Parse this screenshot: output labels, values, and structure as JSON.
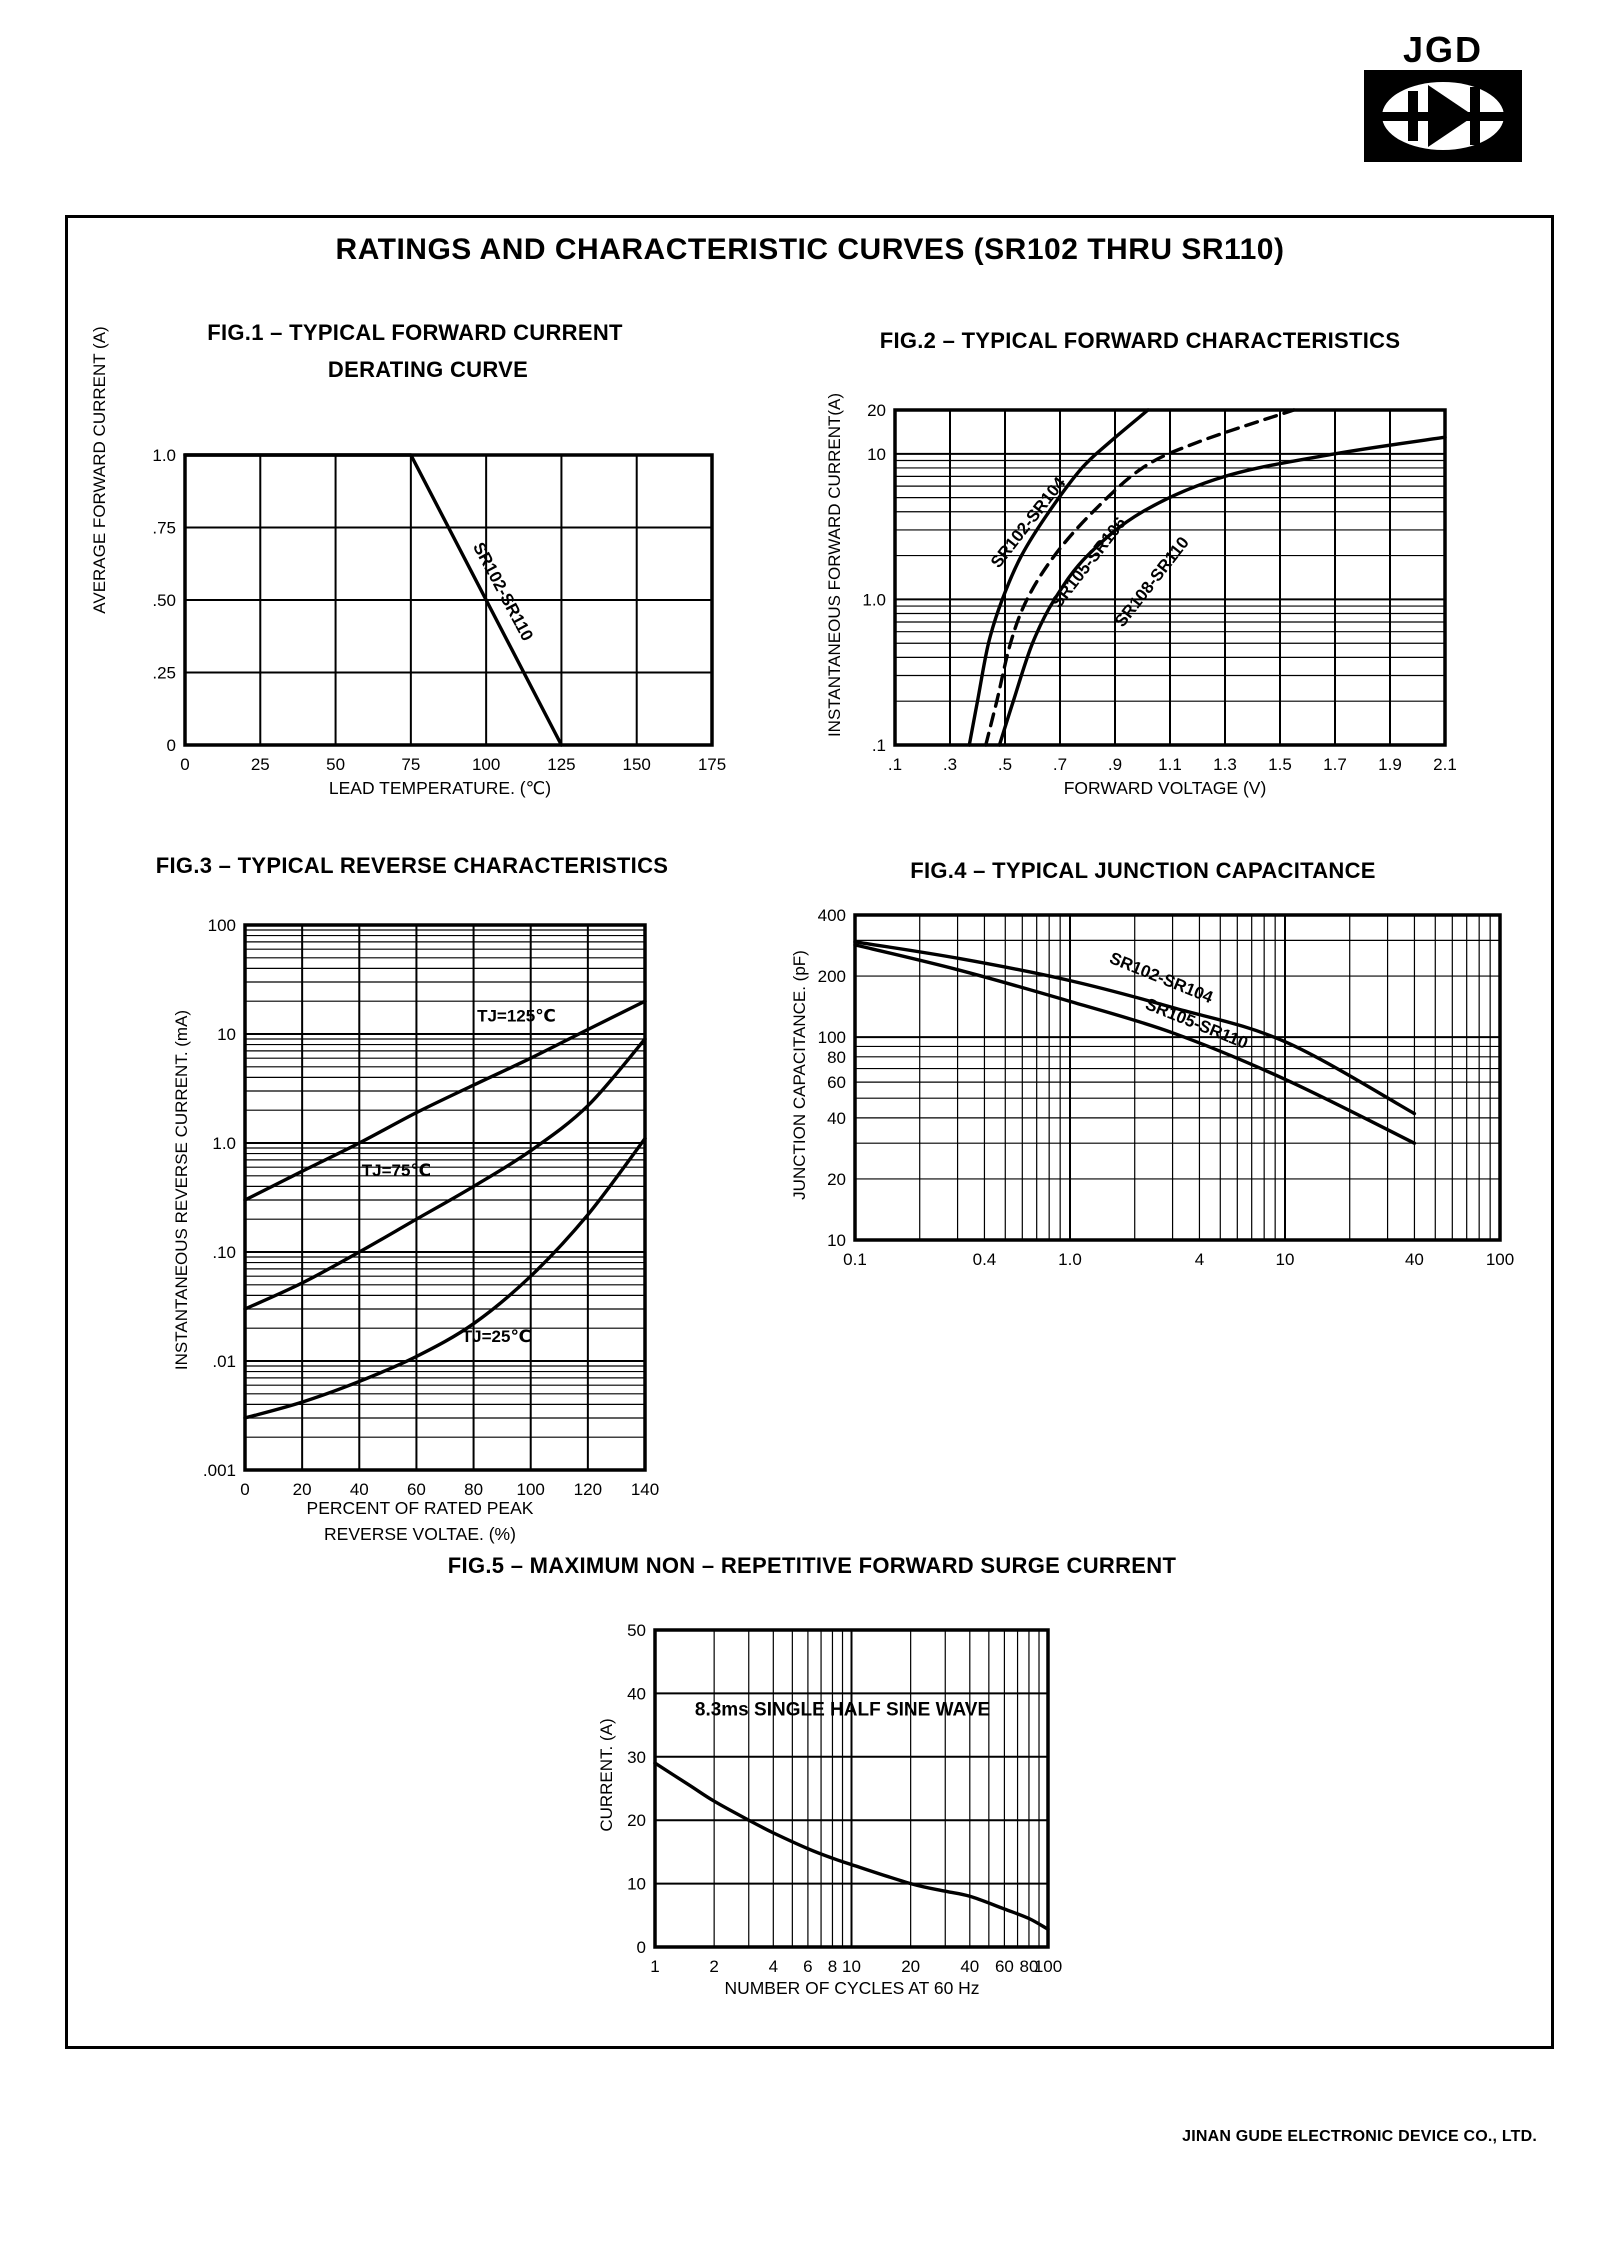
{
  "page": {
    "main_title": "RATINGS AND CHARACTERISTIC CURVES (SR102 THRU SR110)",
    "logo_text": "JGD",
    "footer": "JINAN GUDE ELECTRONIC DEVICE CO., LTD."
  },
  "chart_data": [
    {
      "id": "fig1",
      "type": "line",
      "title": "FIG.1 – TYPICAL FORWARD CURRENT",
      "title_line2": "DERATING CURVE",
      "xlabel": "LEAD TEMPERATURE. (℃)",
      "ylabel": "AVERAGE FORWARD CURRENT (A)",
      "x_scale": "linear",
      "x_range": [
        0,
        175
      ],
      "y_scale": "linear",
      "y_range": [
        0,
        1.0
      ],
      "x_ticks": [
        {
          "v": 0,
          "label": "0"
        },
        {
          "v": 25,
          "label": "25"
        },
        {
          "v": 50,
          "label": "50"
        },
        {
          "v": 75,
          "label": "75"
        },
        {
          "v": 100,
          "label": "100"
        },
        {
          "v": 125,
          "label": "125"
        },
        {
          "v": 150,
          "label": "150"
        },
        {
          "v": 175,
          "label": "175"
        }
      ],
      "y_ticks": [
        {
          "v": 1.0,
          "label": "1.0"
        },
        {
          "v": 0.75,
          "label": ".75"
        },
        {
          "v": 0.5,
          "label": ".50"
        },
        {
          "v": 0.25,
          "label": ".25"
        },
        {
          "v": 0,
          "label": "0"
        }
      ],
      "series": [
        {
          "name": "SR102-SR110",
          "dash": false,
          "smooth": false,
          "points": [
            [
              0,
              1.0
            ],
            [
              75,
              1.0
            ],
            [
              125,
              0
            ]
          ]
        }
      ],
      "annotations": [
        {
          "text": "SR102-SR110",
          "x": 104,
          "y": 0.52,
          "rot": 62,
          "fs": 17
        }
      ]
    },
    {
      "id": "fig2",
      "type": "line",
      "title": "FIG.2 – TYPICAL FORWARD CHARACTERISTICS",
      "xlabel": "FORWARD VOLTAGE (V)",
      "ylabel": "INSTANTANEOUS FORWARD CURRENT(A)",
      "x_scale": "linear",
      "x_range": [
        0.1,
        2.1
      ],
      "y_scale": "log",
      "y_range": [
        0.1,
        20
      ],
      "x_ticks": [
        {
          "v": 0.1,
          "label": ".1"
        },
        {
          "v": 0.3,
          "label": ".3"
        },
        {
          "v": 0.5,
          "label": ".5"
        },
        {
          "v": 0.7,
          "label": ".7"
        },
        {
          "v": 0.9,
          "label": ".9"
        },
        {
          "v": 1.1,
          "label": "1.1"
        },
        {
          "v": 1.3,
          "label": "1.3"
        },
        {
          "v": 1.5,
          "label": "1.5"
        },
        {
          "v": 1.7,
          "label": "1.7"
        },
        {
          "v": 1.9,
          "label": "1.9"
        },
        {
          "v": 2.1,
          "label": "2.1"
        }
      ],
      "y_ticks": [
        {
          "v": 20,
          "label": "20"
        },
        {
          "v": 10,
          "label": "10"
        },
        {
          "v": 1.0,
          "label": "1.0"
        },
        {
          "v": 0.1,
          "label": ".1"
        }
      ],
      "series": [
        {
          "name": "SR102-SR104",
          "dash": false,
          "smooth": true,
          "points": [
            [
              0.37,
              0.1
            ],
            [
              0.4,
              0.2
            ],
            [
              0.44,
              0.5
            ],
            [
              0.49,
              1
            ],
            [
              0.56,
              2
            ],
            [
              0.66,
              4
            ],
            [
              0.78,
              8
            ],
            [
              0.88,
              12
            ],
            [
              1.02,
              20
            ]
          ]
        },
        {
          "name": "SR105-SR106",
          "dash": true,
          "smooth": true,
          "points": [
            [
              0.43,
              0.1
            ],
            [
              0.47,
              0.2
            ],
            [
              0.52,
              0.5
            ],
            [
              0.58,
              1
            ],
            [
              0.68,
              2
            ],
            [
              0.82,
              4
            ],
            [
              1.0,
              8
            ],
            [
              1.2,
              12
            ],
            [
              1.55,
              20
            ]
          ]
        },
        {
          "name": "SR108-SR110",
          "dash": false,
          "smooth": true,
          "points": [
            [
              0.48,
              0.1
            ],
            [
              0.53,
              0.2
            ],
            [
              0.6,
              0.5
            ],
            [
              0.68,
              1
            ],
            [
              0.8,
              2
            ],
            [
              1.0,
              4
            ],
            [
              1.3,
              7
            ],
            [
              1.7,
              10
            ],
            [
              2.1,
              13
            ]
          ]
        }
      ],
      "annotations": [
        {
          "text": "SR102-SR104",
          "x": 0.6,
          "y": 3.2,
          "rot": -52,
          "fs": 17
        },
        {
          "text": "SR105-SR106",
          "x": 0.82,
          "y": 1.7,
          "rot": -52,
          "fs": 17
        },
        {
          "text": "SR108-SR110",
          "x": 1.05,
          "y": 1.25,
          "rot": -52,
          "fs": 17
        }
      ]
    },
    {
      "id": "fig3",
      "type": "line",
      "title": "FIG.3 – TYPICAL REVERSE CHARACTERISTICS",
      "xlabel": "PERCENT OF RATED PEAK",
      "xlabel_line2": "REVERSE VOLTAE. (%)",
      "ylabel": "INSTANTANEOUS REVERSE CURRENT. (mA)",
      "x_scale": "linear",
      "x_range": [
        0,
        140
      ],
      "y_scale": "log",
      "y_range": [
        0.001,
        100
      ],
      "x_ticks": [
        {
          "v": 0,
          "label": "0"
        },
        {
          "v": 20,
          "label": "20"
        },
        {
          "v": 40,
          "label": "40"
        },
        {
          "v": 60,
          "label": "60"
        },
        {
          "v": 80,
          "label": "80"
        },
        {
          "v": 100,
          "label": "100"
        },
        {
          "v": 120,
          "label": "120"
        },
        {
          "v": 140,
          "label": "140"
        }
      ],
      "y_ticks": [
        {
          "v": 100,
          "label": "100"
        },
        {
          "v": 10,
          "label": "10"
        },
        {
          "v": 1.0,
          "label": "1.0"
        },
        {
          "v": 0.1,
          "label": ".10"
        },
        {
          "v": 0.01,
          "label": ".01"
        },
        {
          "v": 0.001,
          "label": ".001"
        }
      ],
      "series": [
        {
          "name": "TJ-125C",
          "dash": false,
          "smooth": true,
          "points": [
            [
              0,
              0.3
            ],
            [
              20,
              0.55
            ],
            [
              40,
              1.0
            ],
            [
              60,
              1.9
            ],
            [
              80,
              3.4
            ],
            [
              100,
              6
            ],
            [
              120,
              11
            ],
            [
              140,
              20
            ]
          ]
        },
        {
          "name": "TJ-75C",
          "dash": false,
          "smooth": true,
          "points": [
            [
              0,
              0.03
            ],
            [
              20,
              0.052
            ],
            [
              40,
              0.1
            ],
            [
              60,
              0.2
            ],
            [
              80,
              0.4
            ],
            [
              100,
              0.85
            ],
            [
              120,
              2.2
            ],
            [
              140,
              9
            ]
          ]
        },
        {
          "name": "TJ-25C",
          "dash": false,
          "smooth": true,
          "points": [
            [
              0,
              0.003
            ],
            [
              20,
              0.0042
            ],
            [
              40,
              0.0065
            ],
            [
              60,
              0.011
            ],
            [
              80,
              0.022
            ],
            [
              100,
              0.06
            ],
            [
              120,
              0.22
            ],
            [
              140,
              1.1
            ]
          ]
        }
      ],
      "annotations": [
        {
          "text": "TJ=125℃",
          "x": 95,
          "y": 13,
          "rot": 0,
          "fs": 17
        },
        {
          "text": "TJ=75℃",
          "x": 53,
          "y": 0.5,
          "rot": 0,
          "fs": 17
        },
        {
          "text": "TJ=25℃",
          "x": 88,
          "y": 0.015,
          "rot": 0,
          "fs": 17
        }
      ]
    },
    {
      "id": "fig4",
      "type": "line",
      "title": "FIG.4 – TYPICAL JUNCTION CAPACITANCE",
      "xlabel": "",
      "ylabel": "JUNCTION CAPACITANCE. (pF)",
      "x_scale": "log",
      "x_range": [
        0.1,
        100
      ],
      "y_scale": "log",
      "y_range": [
        10,
        400
      ],
      "x_ticks": [
        {
          "v": 0.1,
          "label": "0.1"
        },
        {
          "v": 0.4,
          "label": "0.4"
        },
        {
          "v": 1.0,
          "label": "1.0"
        },
        {
          "v": 4,
          "label": "4"
        },
        {
          "v": 10,
          "label": "10"
        },
        {
          "v": 40,
          "label": "40"
        },
        {
          "v": 100,
          "label": "100"
        }
      ],
      "y_ticks": [
        {
          "v": 400,
          "label": "400"
        },
        {
          "v": 200,
          "label": "200"
        },
        {
          "v": 100,
          "label": "100"
        },
        {
          "v": 80,
          "label": "80"
        },
        {
          "v": 60,
          "label": "60"
        },
        {
          "v": 40,
          "label": "40"
        },
        {
          "v": 20,
          "label": "20"
        },
        {
          "v": 10,
          "label": "10"
        }
      ],
      "series": [
        {
          "name": "SR102-SR104",
          "dash": false,
          "smooth": true,
          "points": [
            [
              0.1,
              295
            ],
            [
              0.3,
              245
            ],
            [
              1,
              190
            ],
            [
              3,
              140
            ],
            [
              10,
              95
            ],
            [
              40,
              42
            ]
          ]
        },
        {
          "name": "SR105-SR110",
          "dash": false,
          "smooth": true,
          "points": [
            [
              0.1,
              285
            ],
            [
              0.3,
              215
            ],
            [
              1,
              150
            ],
            [
              3,
              105
            ],
            [
              10,
              62
            ],
            [
              40,
              30
            ]
          ]
        }
      ],
      "annotations": [
        {
          "text": "SR102-SR104",
          "x": 2.6,
          "y": 185,
          "rot": 22,
          "fs": 17
        },
        {
          "text": "SR105-SR110",
          "x": 3.8,
          "y": 110,
          "rot": 22,
          "fs": 17
        }
      ]
    },
    {
      "id": "fig5",
      "type": "line",
      "title": "FIG.5 – MAXIMUM NON – REPETITIVE FORWARD SURGE CURRENT",
      "xlabel": "NUMBER OF CYCLES AT 60 Hz",
      "ylabel": "CURRENT. (A)",
      "x_scale": "log",
      "x_range": [
        1,
        100
      ],
      "y_scale": "linear",
      "y_range": [
        0,
        50
      ],
      "x_ticks": [
        {
          "v": 1,
          "label": "1"
        },
        {
          "v": 2,
          "label": "2"
        },
        {
          "v": 4,
          "label": "4"
        },
        {
          "v": 6,
          "label": "6"
        },
        {
          "v": 8,
          "label": "8"
        },
        {
          "v": 10,
          "label": "10"
        },
        {
          "v": 20,
          "label": "20"
        },
        {
          "v": 40,
          "label": "40"
        },
        {
          "v": 60,
          "label": "60"
        },
        {
          "v": 80,
          "label": "80"
        },
        {
          "v": 100,
          "label": "100"
        }
      ],
      "y_ticks": [
        {
          "v": 50,
          "label": "50"
        },
        {
          "v": 40,
          "label": "40"
        },
        {
          "v": 30,
          "label": "30"
        },
        {
          "v": 20,
          "label": "20"
        },
        {
          "v": 10,
          "label": "10"
        },
        {
          "v": 0,
          "label": "0"
        }
      ],
      "series": [
        {
          "name": "surge-current",
          "dash": false,
          "smooth": true,
          "points": [
            [
              1,
              29
            ],
            [
              1.5,
              25.5
            ],
            [
              2,
              23
            ],
            [
              3,
              20
            ],
            [
              4,
              18
            ],
            [
              6,
              15.5
            ],
            [
              8,
              14
            ],
            [
              10,
              13
            ],
            [
              20,
              10
            ],
            [
              30,
              8.8
            ],
            [
              40,
              8
            ],
            [
              60,
              6
            ],
            [
              80,
              4.5
            ],
            [
              100,
              2.8
            ]
          ]
        }
      ],
      "annotations": [
        {
          "text": "8.3ms SINGLE HALF SINE WAVE",
          "x": 9,
          "y": 36.5,
          "rot": 0,
          "fs": 19
        }
      ]
    }
  ]
}
